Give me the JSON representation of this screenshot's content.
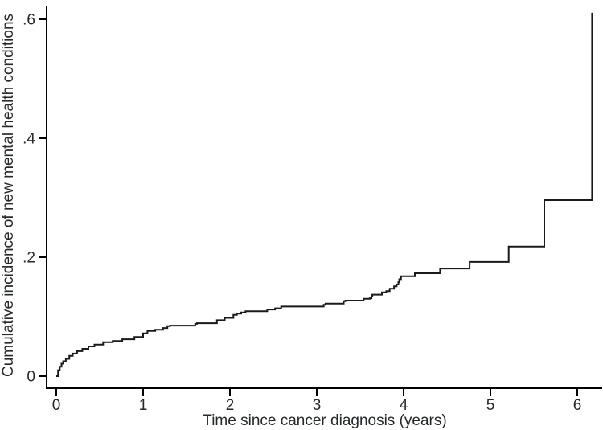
{
  "figure": {
    "background": "#ffffff"
  },
  "colors": {
    "curve": "#1a1a1a",
    "axis": "#000000",
    "text": "#26282a",
    "background": "#ffffff"
  },
  "chart_data": {
    "type": "line",
    "line_style": "step-after",
    "title": "",
    "xlabel": "Time since cancer diagnosis (years)",
    "ylabel": "Cumulative incidence of new mental health conditions",
    "xlim": [
      -0.11,
      6.3
    ],
    "ylim": [
      -0.02,
      0.622
    ],
    "grid": false,
    "legend": "none",
    "x_ticks": [
      {
        "value": 0,
        "label": "0"
      },
      {
        "value": 1,
        "label": "1"
      },
      {
        "value": 2,
        "label": "2"
      },
      {
        "value": 3,
        "label": "3"
      },
      {
        "value": 4,
        "label": "4"
      },
      {
        "value": 5,
        "label": "5"
      },
      {
        "value": 6,
        "label": "6"
      }
    ],
    "y_ticks": [
      {
        "value": 0.0,
        "label": "0"
      },
      {
        "value": 0.2,
        "label": ".2"
      },
      {
        "value": 0.4,
        "label": ".4"
      },
      {
        "value": 0.6,
        "label": ".6"
      }
    ],
    "series": [
      {
        "name": "Cumulative incidence of new mental health conditions",
        "color": "#1a1a1a",
        "points": [
          [
            0.0,
            0.0
          ],
          [
            0.02,
            0.01
          ],
          [
            0.04,
            0.016
          ],
          [
            0.06,
            0.021
          ],
          [
            0.08,
            0.025
          ],
          [
            0.11,
            0.029
          ],
          [
            0.15,
            0.034
          ],
          [
            0.19,
            0.038
          ],
          [
            0.24,
            0.042
          ],
          [
            0.3,
            0.046
          ],
          [
            0.37,
            0.05
          ],
          [
            0.44,
            0.053
          ],
          [
            0.54,
            0.057
          ],
          [
            0.65,
            0.059
          ],
          [
            0.76,
            0.062
          ],
          [
            0.9,
            0.066
          ],
          [
            1.0,
            0.072
          ],
          [
            1.05,
            0.076
          ],
          [
            1.14,
            0.078
          ],
          [
            1.23,
            0.081
          ],
          [
            1.28,
            0.084
          ],
          [
            1.31,
            0.085
          ],
          [
            1.6,
            0.088
          ],
          [
            1.62,
            0.089
          ],
          [
            1.85,
            0.094
          ],
          [
            1.94,
            0.098
          ],
          [
            2.04,
            0.103
          ],
          [
            2.08,
            0.105
          ],
          [
            2.13,
            0.107
          ],
          [
            2.18,
            0.109
          ],
          [
            2.43,
            0.112
          ],
          [
            2.52,
            0.114
          ],
          [
            2.59,
            0.117
          ],
          [
            3.08,
            0.12
          ],
          [
            3.1,
            0.122
          ],
          [
            3.31,
            0.126
          ],
          [
            3.33,
            0.127
          ],
          [
            3.54,
            0.13
          ],
          [
            3.61,
            0.131
          ],
          [
            3.63,
            0.135
          ],
          [
            3.64,
            0.137
          ],
          [
            3.75,
            0.141
          ],
          [
            3.8,
            0.143
          ],
          [
            3.84,
            0.147
          ],
          [
            3.89,
            0.151
          ],
          [
            3.92,
            0.154
          ],
          [
            3.94,
            0.158
          ],
          [
            3.95,
            0.163
          ],
          [
            3.97,
            0.168
          ],
          [
            4.13,
            0.173
          ],
          [
            4.42,
            0.181
          ],
          [
            4.76,
            0.192
          ],
          [
            5.21,
            0.218
          ],
          [
            5.62,
            0.296
          ],
          [
            6.17,
            0.611
          ]
        ]
      }
    ]
  }
}
